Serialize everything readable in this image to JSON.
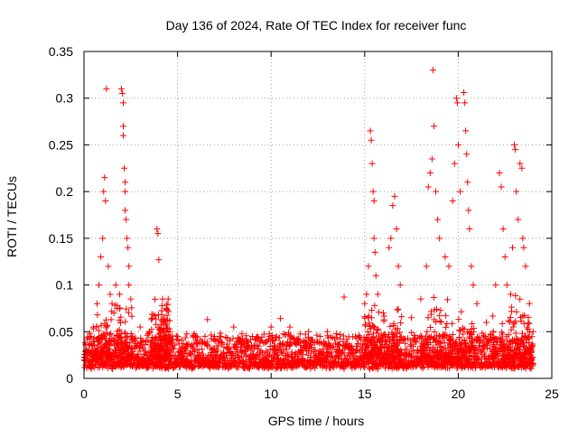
{
  "chart_data": {
    "type": "scatter",
    "title": "Day 136 of 2024, Rate Of TEC Index for receiver func",
    "xlabel": "GPS time / hours",
    "ylabel": "ROTI / TECUs",
    "xlim": [
      0,
      25
    ],
    "ylim": [
      0,
      0.35
    ],
    "x_ticks": [
      0,
      5,
      10,
      15,
      20,
      25
    ],
    "x_tick_labels": [
      "0",
      "5",
      "10",
      "15",
      "20",
      "25"
    ],
    "y_ticks": [
      0,
      0.05,
      0.1,
      0.15,
      0.2,
      0.25,
      0.3,
      0.35
    ],
    "y_tick_labels": [
      "0",
      "0.05",
      "0.1",
      "0.15",
      "0.2",
      "0.25",
      "0.3",
      "0.35"
    ],
    "grid": true,
    "marker": "+",
    "marker_color": "#ff0000",
    "series": [
      {
        "name": "ROTI",
        "points": [
          [
            0.3,
            0.045
          ],
          [
            0.5,
            0.055
          ],
          [
            0.7,
            0.08
          ],
          [
            0.8,
            0.1
          ],
          [
            0.9,
            0.13
          ],
          [
            1.0,
            0.15
          ],
          [
            1.05,
            0.2
          ],
          [
            1.1,
            0.215
          ],
          [
            1.15,
            0.19
          ],
          [
            1.2,
            0.31
          ],
          [
            1.3,
            0.12
          ],
          [
            1.4,
            0.09
          ],
          [
            1.5,
            0.08
          ],
          [
            1.6,
            0.07
          ],
          [
            1.7,
            0.1
          ],
          [
            1.9,
            0.09
          ],
          [
            2.0,
            0.31
          ],
          [
            2.05,
            0.305
          ],
          [
            2.1,
            0.295
          ],
          [
            2.1,
            0.27
          ],
          [
            2.1,
            0.26
          ],
          [
            2.15,
            0.225
          ],
          [
            2.2,
            0.21
          ],
          [
            2.2,
            0.2
          ],
          [
            2.2,
            0.18
          ],
          [
            2.25,
            0.17
          ],
          [
            2.3,
            0.15
          ],
          [
            2.35,
            0.14
          ],
          [
            2.4,
            0.12
          ],
          [
            2.4,
            0.1
          ],
          [
            2.5,
            0.085
          ],
          [
            3.0,
            0.055
          ],
          [
            3.5,
            0.05
          ],
          [
            3.9,
            0.16
          ],
          [
            3.95,
            0.155
          ],
          [
            4.0,
            0.127
          ],
          [
            4.2,
            0.085
          ],
          [
            4.4,
            0.075
          ],
          [
            4.5,
            0.085
          ],
          [
            5.0,
            0.045
          ],
          [
            6.0,
            0.04
          ],
          [
            6.6,
            0.063
          ],
          [
            7.0,
            0.04
          ],
          [
            8.0,
            0.055
          ],
          [
            9.0,
            0.045
          ],
          [
            10.0,
            0.055
          ],
          [
            10.5,
            0.064
          ],
          [
            11.0,
            0.055
          ],
          [
            12.0,
            0.05
          ],
          [
            13.0,
            0.05
          ],
          [
            13.9,
            0.087
          ],
          [
            14.5,
            0.045
          ],
          [
            15.0,
            0.08
          ],
          [
            15.1,
            0.09
          ],
          [
            15.2,
            0.12
          ],
          [
            15.3,
            0.265
          ],
          [
            15.35,
            0.255
          ],
          [
            15.4,
            0.23
          ],
          [
            15.45,
            0.2
          ],
          [
            15.5,
            0.19
          ],
          [
            15.5,
            0.15
          ],
          [
            15.55,
            0.135
          ],
          [
            15.6,
            0.11
          ],
          [
            15.7,
            0.09
          ],
          [
            16.0,
            0.07
          ],
          [
            16.3,
            0.14
          ],
          [
            16.4,
            0.15
          ],
          [
            16.5,
            0.185
          ],
          [
            16.6,
            0.195
          ],
          [
            16.7,
            0.16
          ],
          [
            16.8,
            0.12
          ],
          [
            16.9,
            0.1
          ],
          [
            17.5,
            0.065
          ],
          [
            18.0,
            0.085
          ],
          [
            18.3,
            0.12
          ],
          [
            18.4,
            0.205
          ],
          [
            18.5,
            0.22
          ],
          [
            18.6,
            0.235
          ],
          [
            18.65,
            0.33
          ],
          [
            18.7,
            0.27
          ],
          [
            18.8,
            0.2
          ],
          [
            18.9,
            0.17
          ],
          [
            19.0,
            0.15
          ],
          [
            19.3,
            0.13
          ],
          [
            19.5,
            0.12
          ],
          [
            19.7,
            0.19
          ],
          [
            19.8,
            0.23
          ],
          [
            19.9,
            0.3
          ],
          [
            19.95,
            0.295
          ],
          [
            20.0,
            0.25
          ],
          [
            20.1,
            0.2
          ],
          [
            20.3,
            0.306
          ],
          [
            20.35,
            0.295
          ],
          [
            20.4,
            0.265
          ],
          [
            20.45,
            0.24
          ],
          [
            20.5,
            0.21
          ],
          [
            20.55,
            0.18
          ],
          [
            20.6,
            0.16
          ],
          [
            20.7,
            0.12
          ],
          [
            20.8,
            0.1
          ],
          [
            21.0,
            0.08
          ],
          [
            21.5,
            0.06
          ],
          [
            22.0,
            0.1
          ],
          [
            22.2,
            0.22
          ],
          [
            22.3,
            0.205
          ],
          [
            22.4,
            0.16
          ],
          [
            22.5,
            0.13
          ],
          [
            22.6,
            0.1
          ],
          [
            22.8,
            0.09
          ],
          [
            22.9,
            0.14
          ],
          [
            23.0,
            0.25
          ],
          [
            23.05,
            0.245
          ],
          [
            23.1,
            0.2
          ],
          [
            23.2,
            0.17
          ],
          [
            23.3,
            0.23
          ],
          [
            23.4,
            0.225
          ],
          [
            23.45,
            0.15
          ],
          [
            23.5,
            0.14
          ],
          [
            23.6,
            0.12
          ],
          [
            23.8,
            0.08
          ],
          [
            24.0,
            0.05
          ]
        ],
        "baseline_band": {
          "x_range": [
            0,
            24
          ],
          "y_typical_range": [
            0.01,
            0.05
          ],
          "description_note": "dense continuous band of + markers"
        }
      }
    ]
  }
}
